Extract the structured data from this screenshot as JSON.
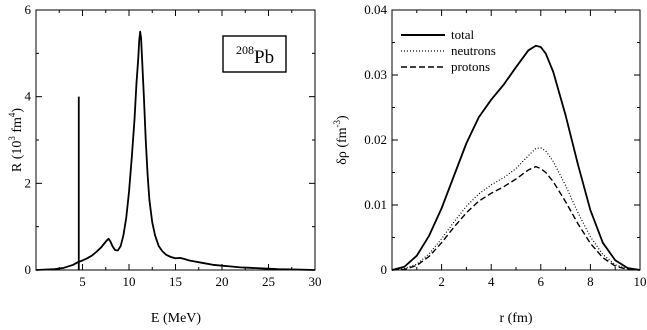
{
  "chart_data": [
    {
      "type": "line",
      "xlabel": "E (MeV)",
      "ylabel": {
        "main": "R (10",
        "exp": "3",
        "mid": " fm",
        "exp2": "4",
        "end": ")"
      },
      "xlim": [
        0,
        30
      ],
      "ylim": [
        0,
        6
      ],
      "xticks": [
        "5",
        "10",
        "15",
        "20",
        "25",
        "30"
      ],
      "yticks": [
        "0",
        "2",
        "4",
        "6"
      ],
      "annotation": {
        "mass": "208",
        "symbol": "Pb"
      },
      "series": [
        {
          "style": "solid",
          "x": [
            0,
            2,
            3,
            4,
            4.5,
            5,
            5.5,
            6,
            6.5,
            7,
            7.3,
            7.6,
            7.8,
            8.0,
            8.2,
            8.5,
            8.8,
            9.1,
            9.4,
            9.7,
            10.0,
            10.3,
            10.6,
            10.8,
            11.0,
            11.1,
            11.2,
            11.3,
            11.4,
            11.6,
            11.8,
            12.0,
            12.2,
            12.5,
            12.8,
            13.2,
            13.6,
            14.0,
            14.5,
            15.0,
            15.5,
            16.0,
            16.5,
            17,
            18,
            19,
            20,
            21,
            22,
            23,
            24,
            25,
            26,
            28,
            30
          ],
          "y": [
            0,
            0.02,
            0.05,
            0.12,
            0.18,
            0.22,
            0.27,
            0.33,
            0.42,
            0.52,
            0.6,
            0.68,
            0.72,
            0.66,
            0.56,
            0.46,
            0.45,
            0.55,
            0.8,
            1.2,
            1.8,
            2.6,
            3.5,
            4.3,
            4.9,
            5.3,
            5.5,
            5.35,
            4.9,
            4.0,
            3.0,
            2.2,
            1.6,
            1.1,
            0.8,
            0.55,
            0.43,
            0.35,
            0.3,
            0.27,
            0.28,
            0.25,
            0.22,
            0.2,
            0.16,
            0.12,
            0.1,
            0.08,
            0.06,
            0.05,
            0.04,
            0.03,
            0.02,
            0.01,
            0
          ]
        },
        {
          "style": "spike",
          "x": [
            4.6,
            4.6
          ],
          "y": [
            0,
            4.0
          ]
        }
      ]
    },
    {
      "type": "line",
      "xlabel": "r (fm)",
      "ylabel": {
        "main": "δρ (fm",
        "exp": "-3",
        "end": ")"
      },
      "xlim": [
        0,
        10
      ],
      "ylim": [
        0,
        0.04
      ],
      "xticks": [
        "2",
        "4",
        "6",
        "8",
        "10"
      ],
      "yticks": [
        "0",
        "0.01",
        "0.02",
        "0.03",
        "0.04"
      ],
      "legend": {
        "placement": "top-left"
      },
      "series": [
        {
          "name": "total",
          "style": "solid",
          "x": [
            0,
            0.5,
            1,
            1.5,
            2,
            2.5,
            3,
            3.5,
            4,
            4.5,
            5,
            5.5,
            5.8,
            6.0,
            6.2,
            6.5,
            7,
            7.5,
            8,
            8.5,
            9,
            9.5,
            10
          ],
          "y": [
            0,
            0.0005,
            0.0022,
            0.0053,
            0.0095,
            0.0145,
            0.0195,
            0.0235,
            0.0262,
            0.0285,
            0.0312,
            0.0338,
            0.0345,
            0.0343,
            0.0333,
            0.0305,
            0.0238,
            0.0162,
            0.0092,
            0.0042,
            0.0015,
            0.0003,
            0
          ]
        },
        {
          "name": "neutrons",
          "style": "dotted",
          "x": [
            0,
            0.5,
            1,
            1.5,
            2,
            2.5,
            3,
            3.5,
            4,
            4.5,
            5,
            5.5,
            5.8,
            6.0,
            6.2,
            6.5,
            7,
            7.5,
            8,
            8.5,
            9,
            9.5,
            10
          ],
          "y": [
            0,
            0.0002,
            0.0009,
            0.0025,
            0.0048,
            0.0074,
            0.0098,
            0.0117,
            0.0131,
            0.0142,
            0.0156,
            0.0176,
            0.0187,
            0.0188,
            0.0183,
            0.0167,
            0.013,
            0.0088,
            0.0051,
            0.0024,
            0.0008,
            0.0002,
            0
          ]
        },
        {
          "name": "protons",
          "style": "dashed",
          "x": [
            0,
            0.5,
            1,
            1.5,
            2,
            2.5,
            3,
            3.5,
            4,
            4.5,
            5,
            5.5,
            5.8,
            6.0,
            6.2,
            6.5,
            7,
            7.5,
            8,
            8.5,
            9,
            9.5,
            10
          ],
          "y": [
            0,
            0.0001,
            0.0007,
            0.0021,
            0.0042,
            0.0066,
            0.0088,
            0.0106,
            0.0118,
            0.0128,
            0.014,
            0.0154,
            0.0159,
            0.0156,
            0.015,
            0.0136,
            0.0105,
            0.0071,
            0.0041,
            0.0019,
            0.0006,
            0.0001,
            0
          ]
        }
      ]
    }
  ]
}
